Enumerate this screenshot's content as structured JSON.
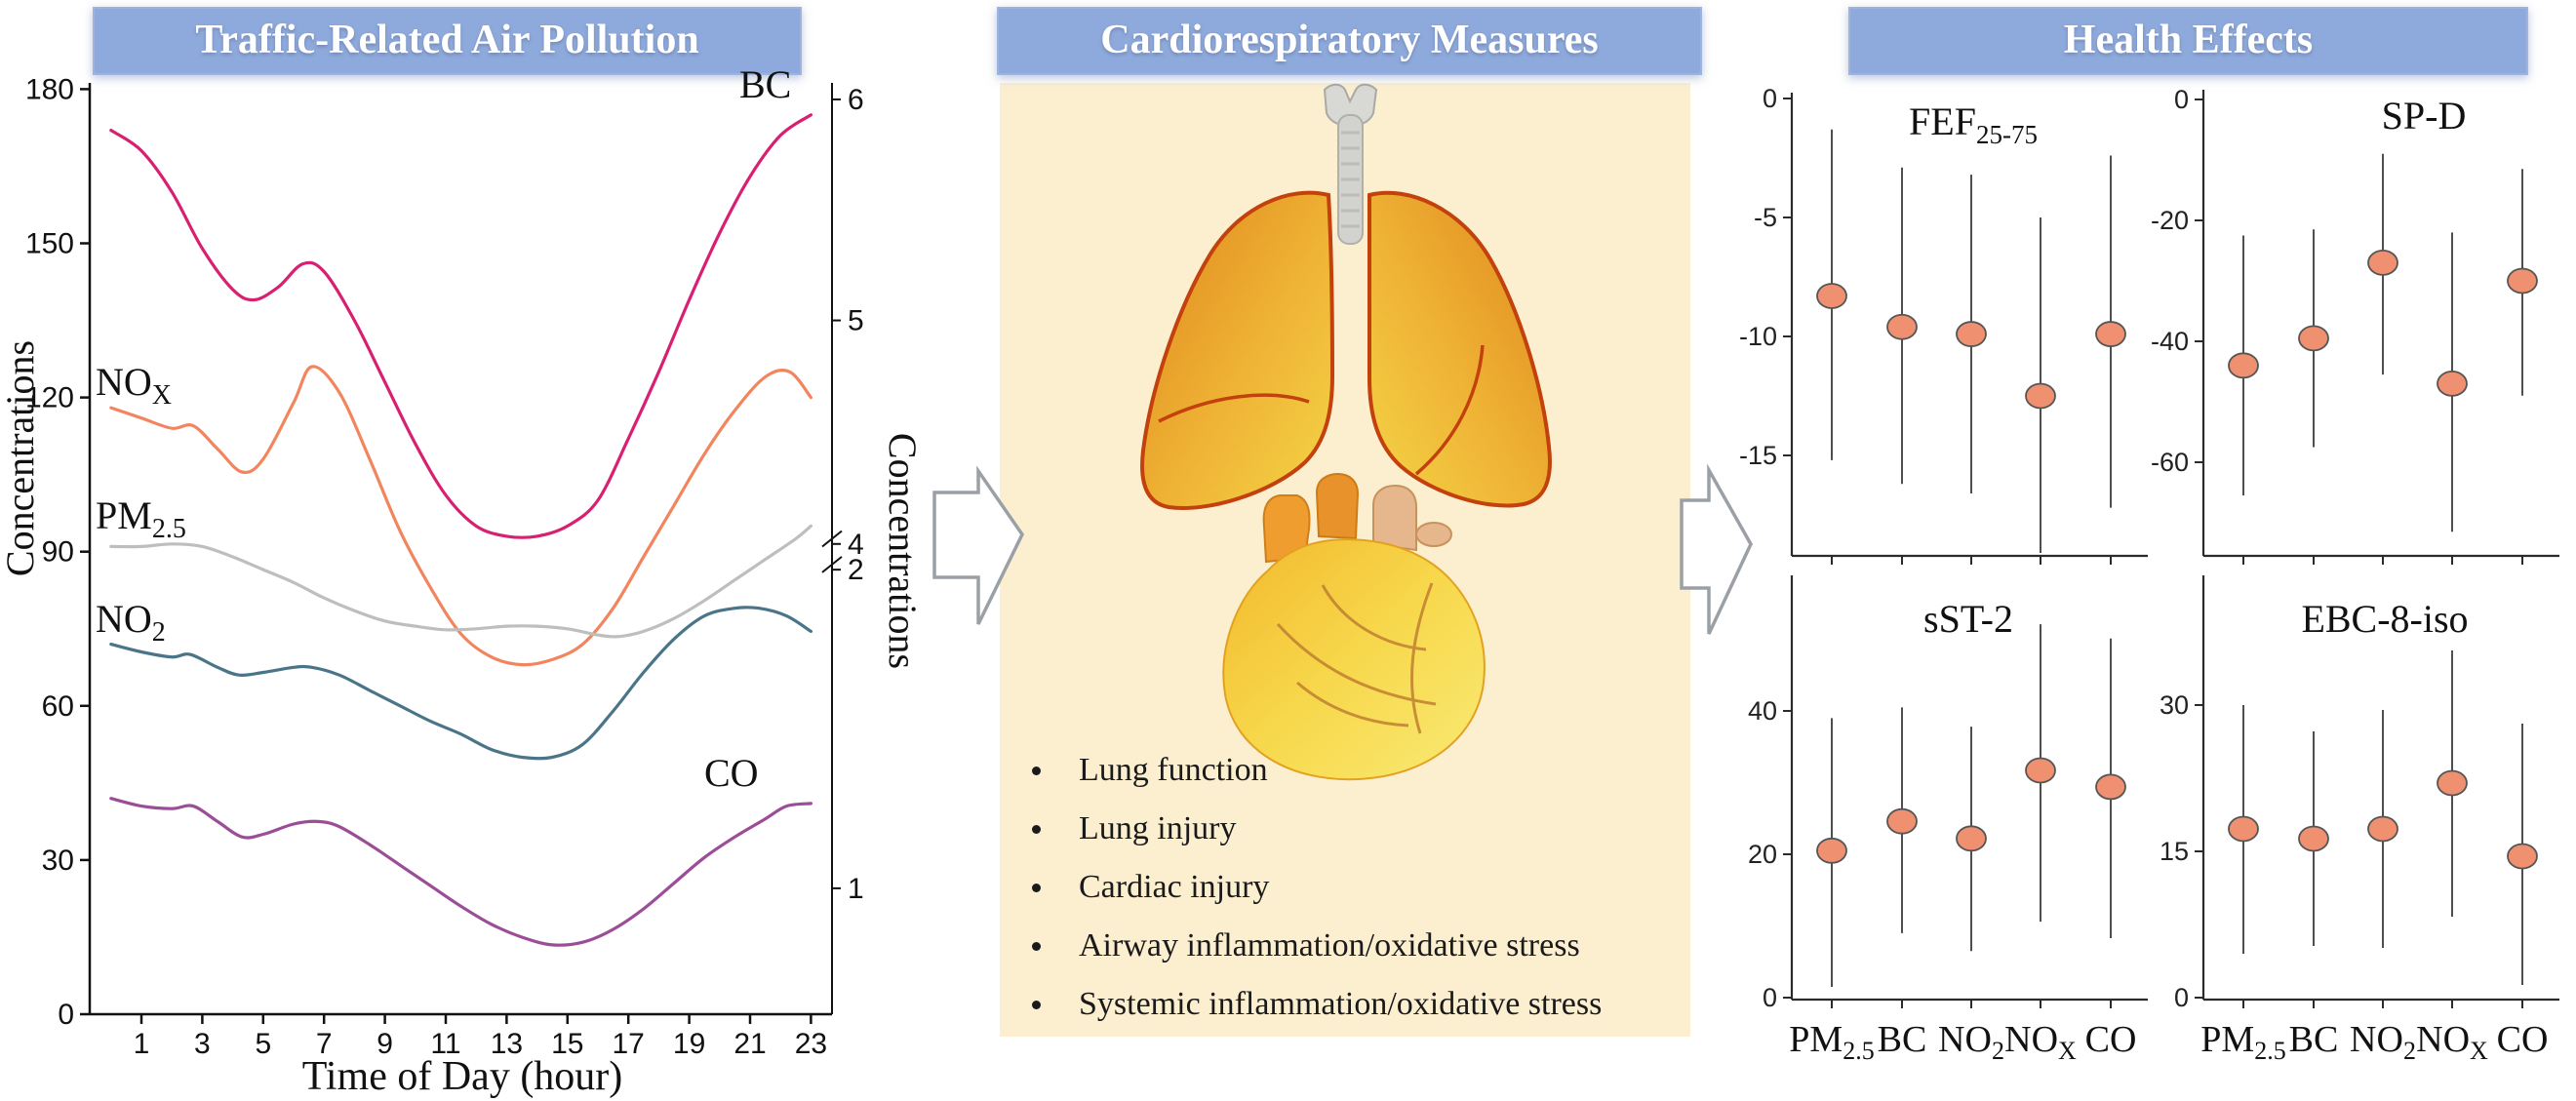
{
  "colors": {
    "banner_bg": "#8EA9DB",
    "banner_text": "#FFFFFF",
    "cream_bg": "#FCEFD0",
    "axis": "#111111",
    "marker_fill": "#EF9070",
    "marker_stroke": "#555555",
    "ci_line": "#3a3a3a",
    "arrow_fill": "#FFFFFF",
    "arrow_stroke": "#9AA0A6",
    "bc_line": "#D81F72",
    "nox_line": "#F2855D",
    "pm25_line": "#BEBEBE",
    "no2_line": "#4A7488",
    "co_line": "#9C4D97"
  },
  "panels": {
    "left": {
      "title": "Traffic-Related Air Pollution"
    },
    "middle": {
      "title": "Cardiorespiratory Measures",
      "icons": [
        "lungs-illustration",
        "heart-illustration"
      ],
      "bullets": [
        "Lung function",
        "Lung injury",
        "Cardiac injury",
        "Airway inflammation/oxidative stress",
        "Systemic inflammation/oxidative stress"
      ]
    },
    "right": {
      "title": "Health Effects"
    }
  },
  "chart_data": [
    {
      "id": "pollution-diurnal",
      "type": "line",
      "title": "Traffic-Related Air Pollution",
      "xlabel": "Time of Day (hour)",
      "ylabel_left": "Concentrations",
      "ylabel_right": "Concentrations",
      "xlim": [
        0,
        24
      ],
      "x_ticks": [
        1,
        3,
        5,
        7,
        9,
        11,
        13,
        15,
        17,
        19,
        21,
        23
      ],
      "ylim_left": [
        0,
        180
      ],
      "y_ticks_left": [
        0,
        30,
        60,
        90,
        120,
        150,
        180
      ],
      "right_axis": {
        "note": "secondary axis with break between 2 and 4",
        "ticks": [
          {
            "label": "6",
            "at_left_equiv": 178
          },
          {
            "label": "5",
            "at_left_equiv": 135
          },
          {
            "label": "4",
            "at_left_equiv": 91.5
          },
          {
            "label": "2",
            "at_left_equiv": 86.5
          },
          {
            "label": "1",
            "at_left_equiv": 24.5
          }
        ],
        "break_at_left_equiv": [
          92.5,
          87.5
        ]
      },
      "grid": false,
      "series": [
        {
          "name": "BC",
          "label_main": "BC",
          "label_sub": "",
          "color": "#D81F72",
          "points": [
            [
              0,
              172
            ],
            [
              1,
              168
            ],
            [
              2,
              160
            ],
            [
              3,
              149
            ],
            [
              4,
              141
            ],
            [
              4.7,
              139
            ],
            [
              5.5,
              141.5
            ],
            [
              6.3,
              146
            ],
            [
              7,
              144.5
            ],
            [
              8,
              135
            ],
            [
              9,
              123
            ],
            [
              10,
              111
            ],
            [
              11,
              101
            ],
            [
              12,
              95
            ],
            [
              13,
              93
            ],
            [
              14,
              93
            ],
            [
              15,
              95
            ],
            [
              16,
              100
            ],
            [
              17,
              112
            ],
            [
              18,
              125
            ],
            [
              19,
              139
            ],
            [
              20,
              152
            ],
            [
              21,
              163
            ],
            [
              22,
              171
            ],
            [
              23,
              175
            ]
          ]
        },
        {
          "name": "NOX",
          "label_main": "NO",
          "label_sub": "X",
          "color": "#F2855D",
          "points": [
            [
              0,
              118
            ],
            [
              1,
              116
            ],
            [
              2,
              114
            ],
            [
              2.7,
              114.5
            ],
            [
              3.5,
              110
            ],
            [
              4.3,
              105.5
            ],
            [
              5,
              108
            ],
            [
              6,
              119
            ],
            [
              6.6,
              126
            ],
            [
              7.5,
              121
            ],
            [
              8.5,
              108
            ],
            [
              9.5,
              94
            ],
            [
              10.5,
              83
            ],
            [
              11.5,
              74
            ],
            [
              12.5,
              69.5
            ],
            [
              13.5,
              68
            ],
            [
              14.5,
              69
            ],
            [
              15.5,
              72
            ],
            [
              16.5,
              79
            ],
            [
              17.5,
              89
            ],
            [
              18.5,
              99
            ],
            [
              19.5,
              109
            ],
            [
              20.5,
              117.5
            ],
            [
              21.5,
              124
            ],
            [
              22.3,
              125
            ],
            [
              23,
              120
            ]
          ]
        },
        {
          "name": "PM2.5",
          "label_main": "PM",
          "label_sub": "2.5",
          "color": "#BEBEBE",
          "points": [
            [
              0,
              91
            ],
            [
              1,
              91
            ],
            [
              2,
              91.5
            ],
            [
              3,
              91
            ],
            [
              4,
              89
            ],
            [
              5,
              86.5
            ],
            [
              6,
              84
            ],
            [
              7,
              81
            ],
            [
              8,
              78.5
            ],
            [
              9,
              76.5
            ],
            [
              10,
              75.5
            ],
            [
              11,
              74.8
            ],
            [
              12,
              75
            ],
            [
              13,
              75.5
            ],
            [
              14,
              75.5
            ],
            [
              15,
              75
            ],
            [
              16,
              73.8
            ],
            [
              16.7,
              73.5
            ],
            [
              17.5,
              74.5
            ],
            [
              18.5,
              77
            ],
            [
              19.5,
              80.5
            ],
            [
              20.5,
              84.5
            ],
            [
              21.5,
              88.5
            ],
            [
              22.5,
              92.5
            ],
            [
              23,
              95
            ]
          ]
        },
        {
          "name": "NO2",
          "label_main": "NO",
          "label_sub": "2",
          "color": "#4A7488",
          "points": [
            [
              0,
              72
            ],
            [
              1,
              70.5
            ],
            [
              2,
              69.5
            ],
            [
              2.6,
              70
            ],
            [
              3.5,
              67.5
            ],
            [
              4.2,
              66
            ],
            [
              5,
              66.5
            ],
            [
              6,
              67.5
            ],
            [
              6.6,
              67.5
            ],
            [
              7.5,
              66
            ],
            [
              8.5,
              63
            ],
            [
              9.5,
              60
            ],
            [
              10.5,
              57
            ],
            [
              11.5,
              54.5
            ],
            [
              12.5,
              51.5
            ],
            [
              13.5,
              50
            ],
            [
              14.5,
              50
            ],
            [
              15.5,
              52.5
            ],
            [
              16.5,
              59
            ],
            [
              17.5,
              66.5
            ],
            [
              18.5,
              73
            ],
            [
              19.5,
              77.5
            ],
            [
              20.5,
              79
            ],
            [
              21.3,
              79
            ],
            [
              22.2,
              77.5
            ],
            [
              23,
              74.5
            ]
          ]
        },
        {
          "name": "CO",
          "label_main": "CO",
          "label_sub": "",
          "color": "#9C4D97",
          "points": [
            [
              0,
              42
            ],
            [
              1,
              40.5
            ],
            [
              2,
              40
            ],
            [
              2.7,
              40.5
            ],
            [
              3.5,
              37.5
            ],
            [
              4.3,
              34.5
            ],
            [
              5,
              35
            ],
            [
              6,
              37
            ],
            [
              6.8,
              37.5
            ],
            [
              7.5,
              36.5
            ],
            [
              8.5,
              33
            ],
            [
              9.5,
              29
            ],
            [
              10.5,
              25
            ],
            [
              11.5,
              21
            ],
            [
              12.5,
              17.5
            ],
            [
              13.5,
              15
            ],
            [
              14.5,
              13.5
            ],
            [
              15.5,
              14
            ],
            [
              16.5,
              16.5
            ],
            [
              17.5,
              20.5
            ],
            [
              18.5,
              25.5
            ],
            [
              19.5,
              30.5
            ],
            [
              20.5,
              34.5
            ],
            [
              21.5,
              38
            ],
            [
              22.2,
              40.5
            ],
            [
              23,
              41
            ]
          ]
        }
      ]
    },
    {
      "id": "health-effects-forest",
      "type": "scatter",
      "title": "Health Effects",
      "categories": [
        {
          "main": "PM",
          "sub": "2.5"
        },
        {
          "main": "BC",
          "sub": ""
        },
        {
          "main": "NO",
          "sub": "2"
        },
        {
          "main": "NO",
          "sub": "X"
        },
        {
          "main": "CO",
          "sub": ""
        }
      ],
      "plots": [
        {
          "name": "FEF25-75",
          "title_main": "FEF",
          "title_sub": "25-75",
          "y_ticks": [
            0,
            -5,
            -10,
            -15
          ],
          "ylim": [
            -19.5,
            0.3
          ],
          "points": [
            -8.3,
            -9.6,
            -9.9,
            -12.5,
            -9.9
          ],
          "ci_high": [
            -1.3,
            -2.9,
            -3.2,
            -5.0,
            -2.4
          ],
          "ci_low": [
            -15.2,
            -16.2,
            -16.6,
            -19.1,
            -17.2
          ],
          "show_x_labels": false
        },
        {
          "name": "SP-D",
          "title_main": "SP-D",
          "title_sub": "",
          "y_ticks": [
            0,
            -20,
            -40,
            -60
          ],
          "ylim": [
            -77,
            0.3
          ],
          "points": [
            -44,
            -39.5,
            -27,
            -47,
            -30
          ],
          "ci_high": [
            -22.5,
            -21.5,
            -9,
            -22,
            -11.5
          ],
          "ci_low": [
            -65.5,
            -57.5,
            -45.5,
            -71.5,
            -49
          ],
          "show_x_labels": false
        },
        {
          "name": "sST-2",
          "title_main": "sST-2",
          "title_sub": "",
          "y_ticks": [
            0,
            20,
            40
          ],
          "ylim": [
            -0.3,
            59
          ],
          "points": [
            20.5,
            24.6,
            22.2,
            31.7,
            29.4
          ],
          "ci_high": [
            39,
            40.5,
            37.8,
            52.1,
            50.1
          ],
          "ci_low": [
            1.5,
            9,
            6.5,
            10.6,
            8.3
          ],
          "show_x_labels": true
        },
        {
          "name": "EBC-8-iso",
          "title_main": "EBC-8-iso",
          "title_sub": "",
          "y_ticks": [
            0,
            15,
            30
          ],
          "ylim": [
            -0.3,
            43.5
          ],
          "points": [
            17.3,
            16.3,
            17.3,
            22,
            14.5
          ],
          "ci_high": [
            30,
            27.3,
            29.5,
            35.6,
            28.1
          ],
          "ci_low": [
            4.5,
            5.3,
            5.1,
            8.3,
            1.3
          ],
          "show_x_labels": true
        }
      ]
    }
  ]
}
